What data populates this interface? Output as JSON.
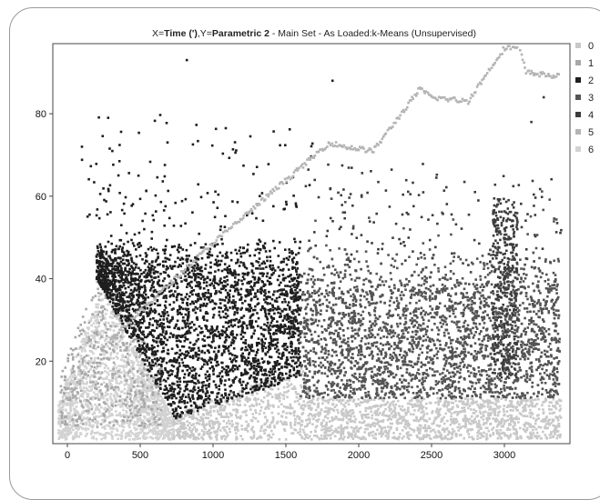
{
  "chart_data": {
    "type": "scatter",
    "title_prefix": "X=",
    "title_x_var": "Time (')",
    "title_mid": ",Y=",
    "title_y_var": "Parametric 2",
    "title_suffix": " - Main Set - As Loaded:k-Means (Unsupervised)",
    "xlim": [
      -100,
      3450
    ],
    "ylim": [
      0,
      97
    ],
    "x_ticks": [
      "0",
      "500",
      "1000",
      "1500",
      "2000",
      "2500",
      "3000"
    ],
    "y_ticks": [
      "20",
      "40",
      "60",
      "80"
    ],
    "grid": false,
    "legend_position": "right",
    "series": [
      {
        "name": "0",
        "color": "#c8c8c8"
      },
      {
        "name": "1",
        "color": "#a8a8a8"
      },
      {
        "name": "2",
        "color": "#1e1e1e"
      },
      {
        "name": "3",
        "color": "#545454"
      },
      {
        "name": "4",
        "color": "#3c3c3c"
      },
      {
        "name": "5",
        "color": "#b4b4b4"
      },
      {
        "name": "6",
        "color": "#d2d2d2"
      }
    ],
    "trend_line": {
      "series": "5",
      "points": [
        [
          290,
          25
        ],
        [
          980,
          48
        ],
        [
          1800,
          73
        ],
        [
          1900,
          72
        ],
        [
          2100,
          71
        ],
        [
          2420,
          86
        ],
        [
          2500,
          84
        ],
        [
          2750,
          83
        ],
        [
          3000,
          96
        ],
        [
          3100,
          96
        ],
        [
          3150,
          90
        ],
        [
          3380,
          89
        ]
      ]
    }
  }
}
